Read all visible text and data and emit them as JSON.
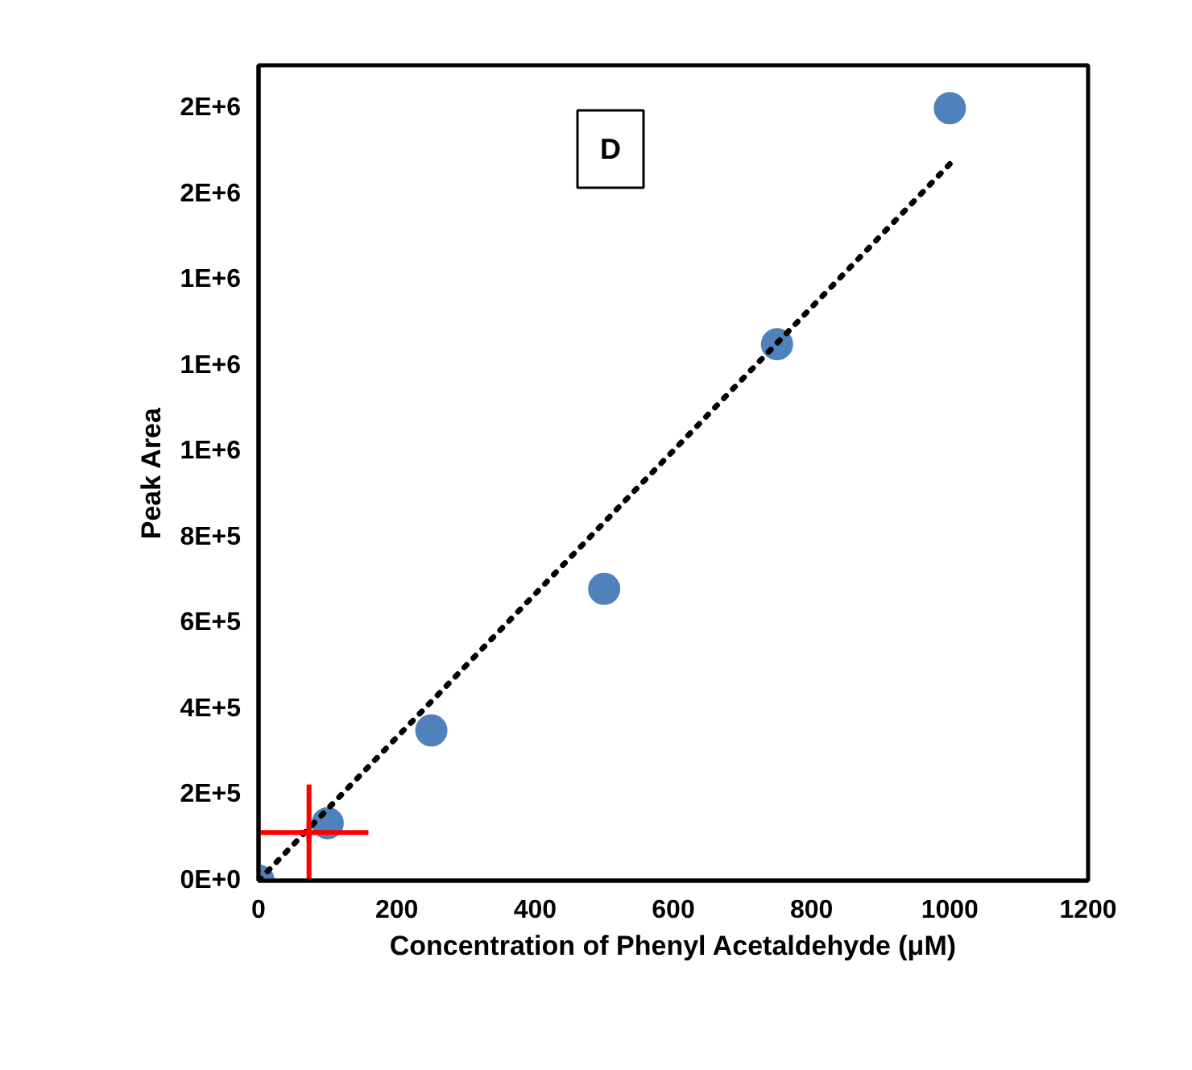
{
  "chart_data": {
    "type": "scatter",
    "xlabel": "Concentration of Phenyl Acetaldehyde (μM)",
    "ylabel": "Peak Area",
    "annotations": [
      "D"
    ],
    "x": [
      0,
      100,
      250,
      500,
      750,
      1000
    ],
    "series": [
      {
        "color": "#4f81bd",
        "marker": "circle",
        "values": [
          0,
          134000,
          350000,
          680000,
          1250000,
          1800000
        ]
      },
      {
        "type": "line",
        "color": "#000000",
        "line_style": "dotted",
        "x": [
          0,
          1000
        ],
        "values": [
          0,
          1670000
        ]
      },
      {
        "color": "#ff0000",
        "marker": "cross",
        "x": [
          73
        ],
        "values": [
          112000
        ],
        "errors": [
          112000
        ],
        "xerrors": [
          86
        ]
      }
    ],
    "xlim": [
      0,
      1200
    ],
    "xticks": [
      0,
      200,
      400,
      600,
      800,
      1000,
      1200
    ],
    "ylim": [
      0,
      1900000
    ],
    "yticks": [
      {
        "value": 0,
        "label": "0E+0"
      },
      {
        "value": 200000,
        "label": "2E+5"
      },
      {
        "value": 400000,
        "label": "4E+5"
      },
      {
        "value": 600000,
        "label": "6E+5"
      },
      {
        "value": 800000,
        "label": "8E+5"
      },
      {
        "value": 1000000,
        "label": "1E+6"
      },
      {
        "value": 1200000,
        "label": "1E+6"
      },
      {
        "value": 1400000,
        "label": "1E+6"
      },
      {
        "value": 1600000,
        "label": "2E+6"
      },
      {
        "value": 1800000,
        "label": "2E+6"
      }
    ],
    "grid": false
  }
}
